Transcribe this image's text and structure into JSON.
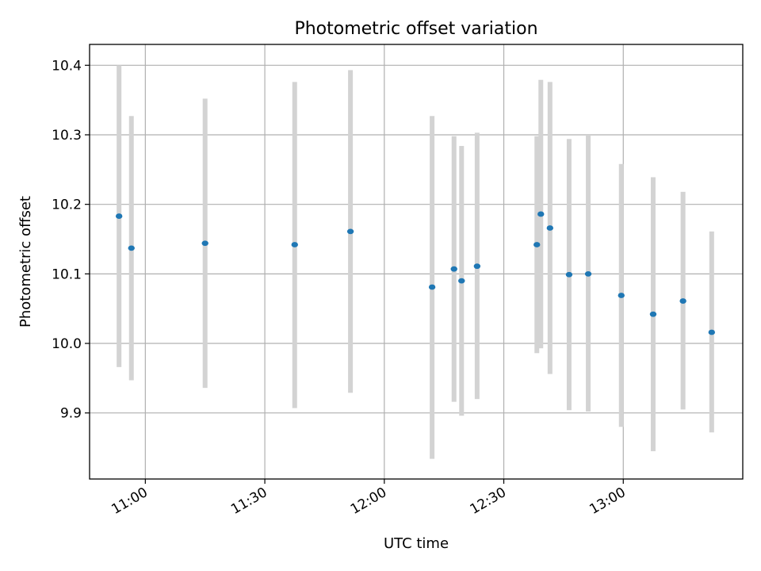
{
  "chart_data": {
    "type": "scatter",
    "title": "Photometric offset variation",
    "xlabel": "UTC time",
    "ylabel": "Photometric offset",
    "xlim_minutes": [
      646,
      810
    ],
    "ylim": [
      9.805,
      10.43
    ],
    "grid": true,
    "x_ticks": [
      {
        "minutes": 660,
        "label": "11:00"
      },
      {
        "minutes": 690,
        "label": "11:30"
      },
      {
        "minutes": 720,
        "label": "12:00"
      },
      {
        "minutes": 750,
        "label": "12:30"
      },
      {
        "minutes": 780,
        "label": "13:00"
      }
    ],
    "y_ticks": [
      {
        "value": 9.9,
        "label": "9.9"
      },
      {
        "value": 10.0,
        "label": "10.0"
      },
      {
        "value": 10.1,
        "label": "10.1"
      },
      {
        "value": 10.2,
        "label": "10.2"
      },
      {
        "value": 10.3,
        "label": "10.3"
      },
      {
        "value": 10.4,
        "label": "10.4"
      }
    ],
    "points": [
      {
        "time_minutes": 653.4,
        "value": 10.183,
        "err_low": 9.966,
        "err_high": 10.4
      },
      {
        "time_minutes": 656.5,
        "value": 10.137,
        "err_low": 9.947,
        "err_high": 10.327
      },
      {
        "time_minutes": 675.0,
        "value": 10.144,
        "err_low": 9.936,
        "err_high": 10.352
      },
      {
        "time_minutes": 697.5,
        "value": 10.142,
        "err_low": 9.907,
        "err_high": 10.376
      },
      {
        "time_minutes": 711.5,
        "value": 10.161,
        "err_low": 9.929,
        "err_high": 10.393
      },
      {
        "time_minutes": 732.0,
        "value": 10.081,
        "err_low": 9.834,
        "err_high": 10.327
      },
      {
        "time_minutes": 737.5,
        "value": 10.107,
        "err_low": 9.916,
        "err_high": 10.298
      },
      {
        "time_minutes": 739.4,
        "value": 10.09,
        "err_low": 9.896,
        "err_high": 10.284
      },
      {
        "time_minutes": 743.3,
        "value": 10.111,
        "err_low": 9.92,
        "err_high": 10.303
      },
      {
        "time_minutes": 758.3,
        "value": 10.142,
        "err_low": 9.986,
        "err_high": 10.298
      },
      {
        "time_minutes": 759.3,
        "value": 10.186,
        "err_low": 9.993,
        "err_high": 10.379
      },
      {
        "time_minutes": 761.6,
        "value": 10.166,
        "err_low": 9.956,
        "err_high": 10.376
      },
      {
        "time_minutes": 766.4,
        "value": 10.099,
        "err_low": 9.904,
        "err_high": 10.294
      },
      {
        "time_minutes": 771.2,
        "value": 10.1,
        "err_low": 9.902,
        "err_high": 10.3
      },
      {
        "time_minutes": 779.5,
        "value": 10.069,
        "err_low": 9.88,
        "err_high": 10.258
      },
      {
        "time_minutes": 787.5,
        "value": 10.042,
        "err_low": 9.845,
        "err_high": 10.239
      },
      {
        "time_minutes": 795.0,
        "value": 10.061,
        "err_low": 9.905,
        "err_high": 10.218
      },
      {
        "time_minutes": 802.2,
        "value": 10.016,
        "err_low": 9.872,
        "err_high": 10.161
      }
    ]
  },
  "colors": {
    "point": "#1f77b4",
    "error_bar": "#d3d3d3",
    "grid": "#b0b0b0"
  }
}
